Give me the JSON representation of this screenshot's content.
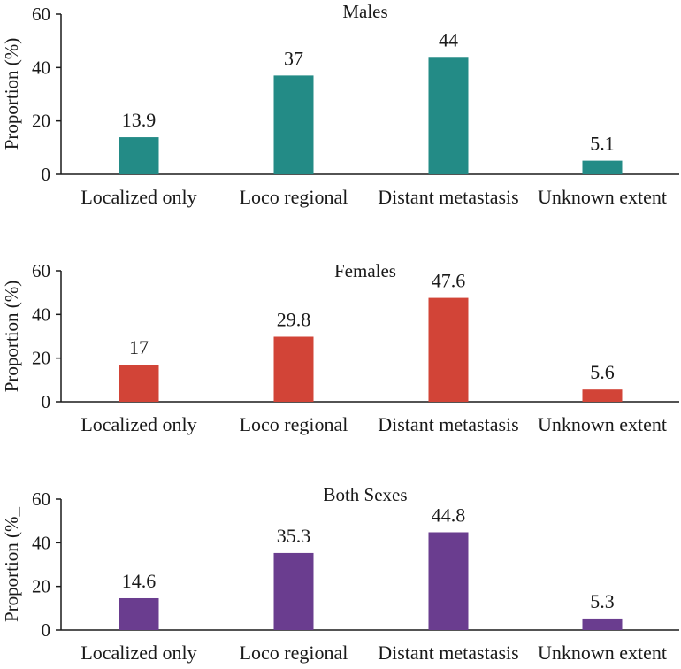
{
  "chart_data": [
    {
      "type": "bar",
      "title": "Males",
      "ylabel": "Proportion (%)",
      "xlabel": "",
      "ylim": [
        0,
        60
      ],
      "yticks": [
        0,
        20,
        40,
        60
      ],
      "categories": [
        "Localized only",
        "Loco regional",
        "Distant metastasis",
        "Unknown extent"
      ],
      "values": [
        13.9,
        37,
        44,
        5.1
      ],
      "value_labels": [
        "13.9",
        "37",
        "44",
        "5.1"
      ],
      "color": "#238b86"
    },
    {
      "type": "bar",
      "title": "Females",
      "ylabel": "Proportion (%)",
      "xlabel": "",
      "ylim": [
        0,
        60
      ],
      "yticks": [
        0,
        20,
        40,
        60
      ],
      "categories": [
        "Localized only",
        "Loco regional",
        "Distant metastasis",
        "Unknown extent"
      ],
      "values": [
        17,
        29.8,
        47.6,
        5.6
      ],
      "value_labels": [
        "17",
        "29.8",
        "47.6",
        "5.6"
      ],
      "color": "#d24437"
    },
    {
      "type": "bar",
      "title": "Both Sexes",
      "ylabel": "Proportion (%_",
      "xlabel": "",
      "ylim": [
        0,
        60
      ],
      "yticks": [
        0,
        20,
        40,
        60
      ],
      "categories": [
        "Localized only",
        "Loco regional",
        "Distant metastasis",
        "Unknown extent"
      ],
      "values": [
        14.6,
        35.3,
        44.8,
        5.3
      ],
      "value_labels": [
        "14.6",
        "35.3",
        "44.8",
        "5.3"
      ],
      "color": "#6a3d8f"
    }
  ]
}
